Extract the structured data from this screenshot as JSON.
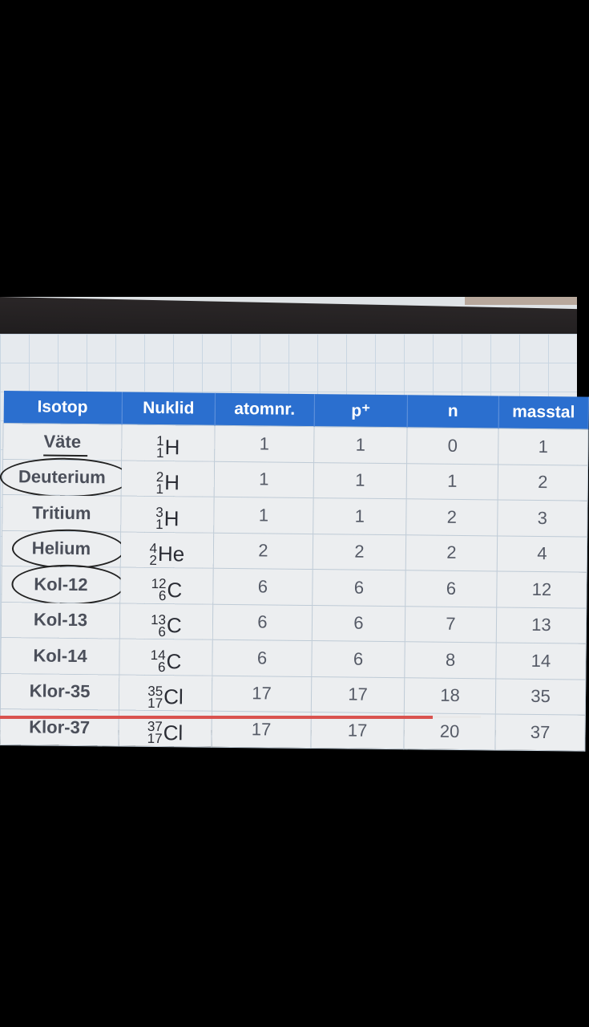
{
  "table": {
    "headers": [
      "Isotop",
      "Nuklid",
      "atomnr.",
      "p⁺",
      "n",
      "masstal"
    ],
    "rows": [
      {
        "isotop": "Väte",
        "mass": "1",
        "z": "1",
        "symbol": "H",
        "atomnr": "1",
        "p": "1",
        "n": "0",
        "masstal": "1",
        "marked": "underline"
      },
      {
        "isotop": "Deuterium",
        "mass": "2",
        "z": "1",
        "symbol": "H",
        "atomnr": "1",
        "p": "1",
        "n": "1",
        "masstal": "2",
        "marked": "circle"
      },
      {
        "isotop": "Tritium",
        "mass": "3",
        "z": "1",
        "symbol": "H",
        "atomnr": "1",
        "p": "1",
        "n": "2",
        "masstal": "3"
      },
      {
        "isotop": "Helium",
        "mass": "4",
        "z": "2",
        "symbol": "He",
        "atomnr": "2",
        "p": "2",
        "n": "2",
        "masstal": "4",
        "marked": "circle"
      },
      {
        "isotop": "Kol-12",
        "mass": "12",
        "z": "6",
        "symbol": "C",
        "atomnr": "6",
        "p": "6",
        "n": "6",
        "masstal": "12",
        "marked": "circle"
      },
      {
        "isotop": "Kol-13",
        "mass": "13",
        "z": "6",
        "symbol": "C",
        "atomnr": "6",
        "p": "6",
        "n": "7",
        "masstal": "13"
      },
      {
        "isotop": "Kol-14",
        "mass": "14",
        "z": "6",
        "symbol": "C",
        "atomnr": "6",
        "p": "6",
        "n": "8",
        "masstal": "14"
      },
      {
        "isotop": "Klor-35",
        "mass": "35",
        "z": "17",
        "symbol": "Cl",
        "atomnr": "17",
        "p": "17",
        "n": "18",
        "masstal": "35"
      },
      {
        "isotop": "Klor-37",
        "mass": "37",
        "z": "17",
        "symbol": "Cl",
        "atomnr": "17",
        "p": "17",
        "n": "20",
        "masstal": "37"
      }
    ]
  },
  "colors": {
    "header": "#2b6fcf",
    "progress": "#d9534f",
    "annotation": "#222222"
  },
  "progress_fraction": 0.75
}
